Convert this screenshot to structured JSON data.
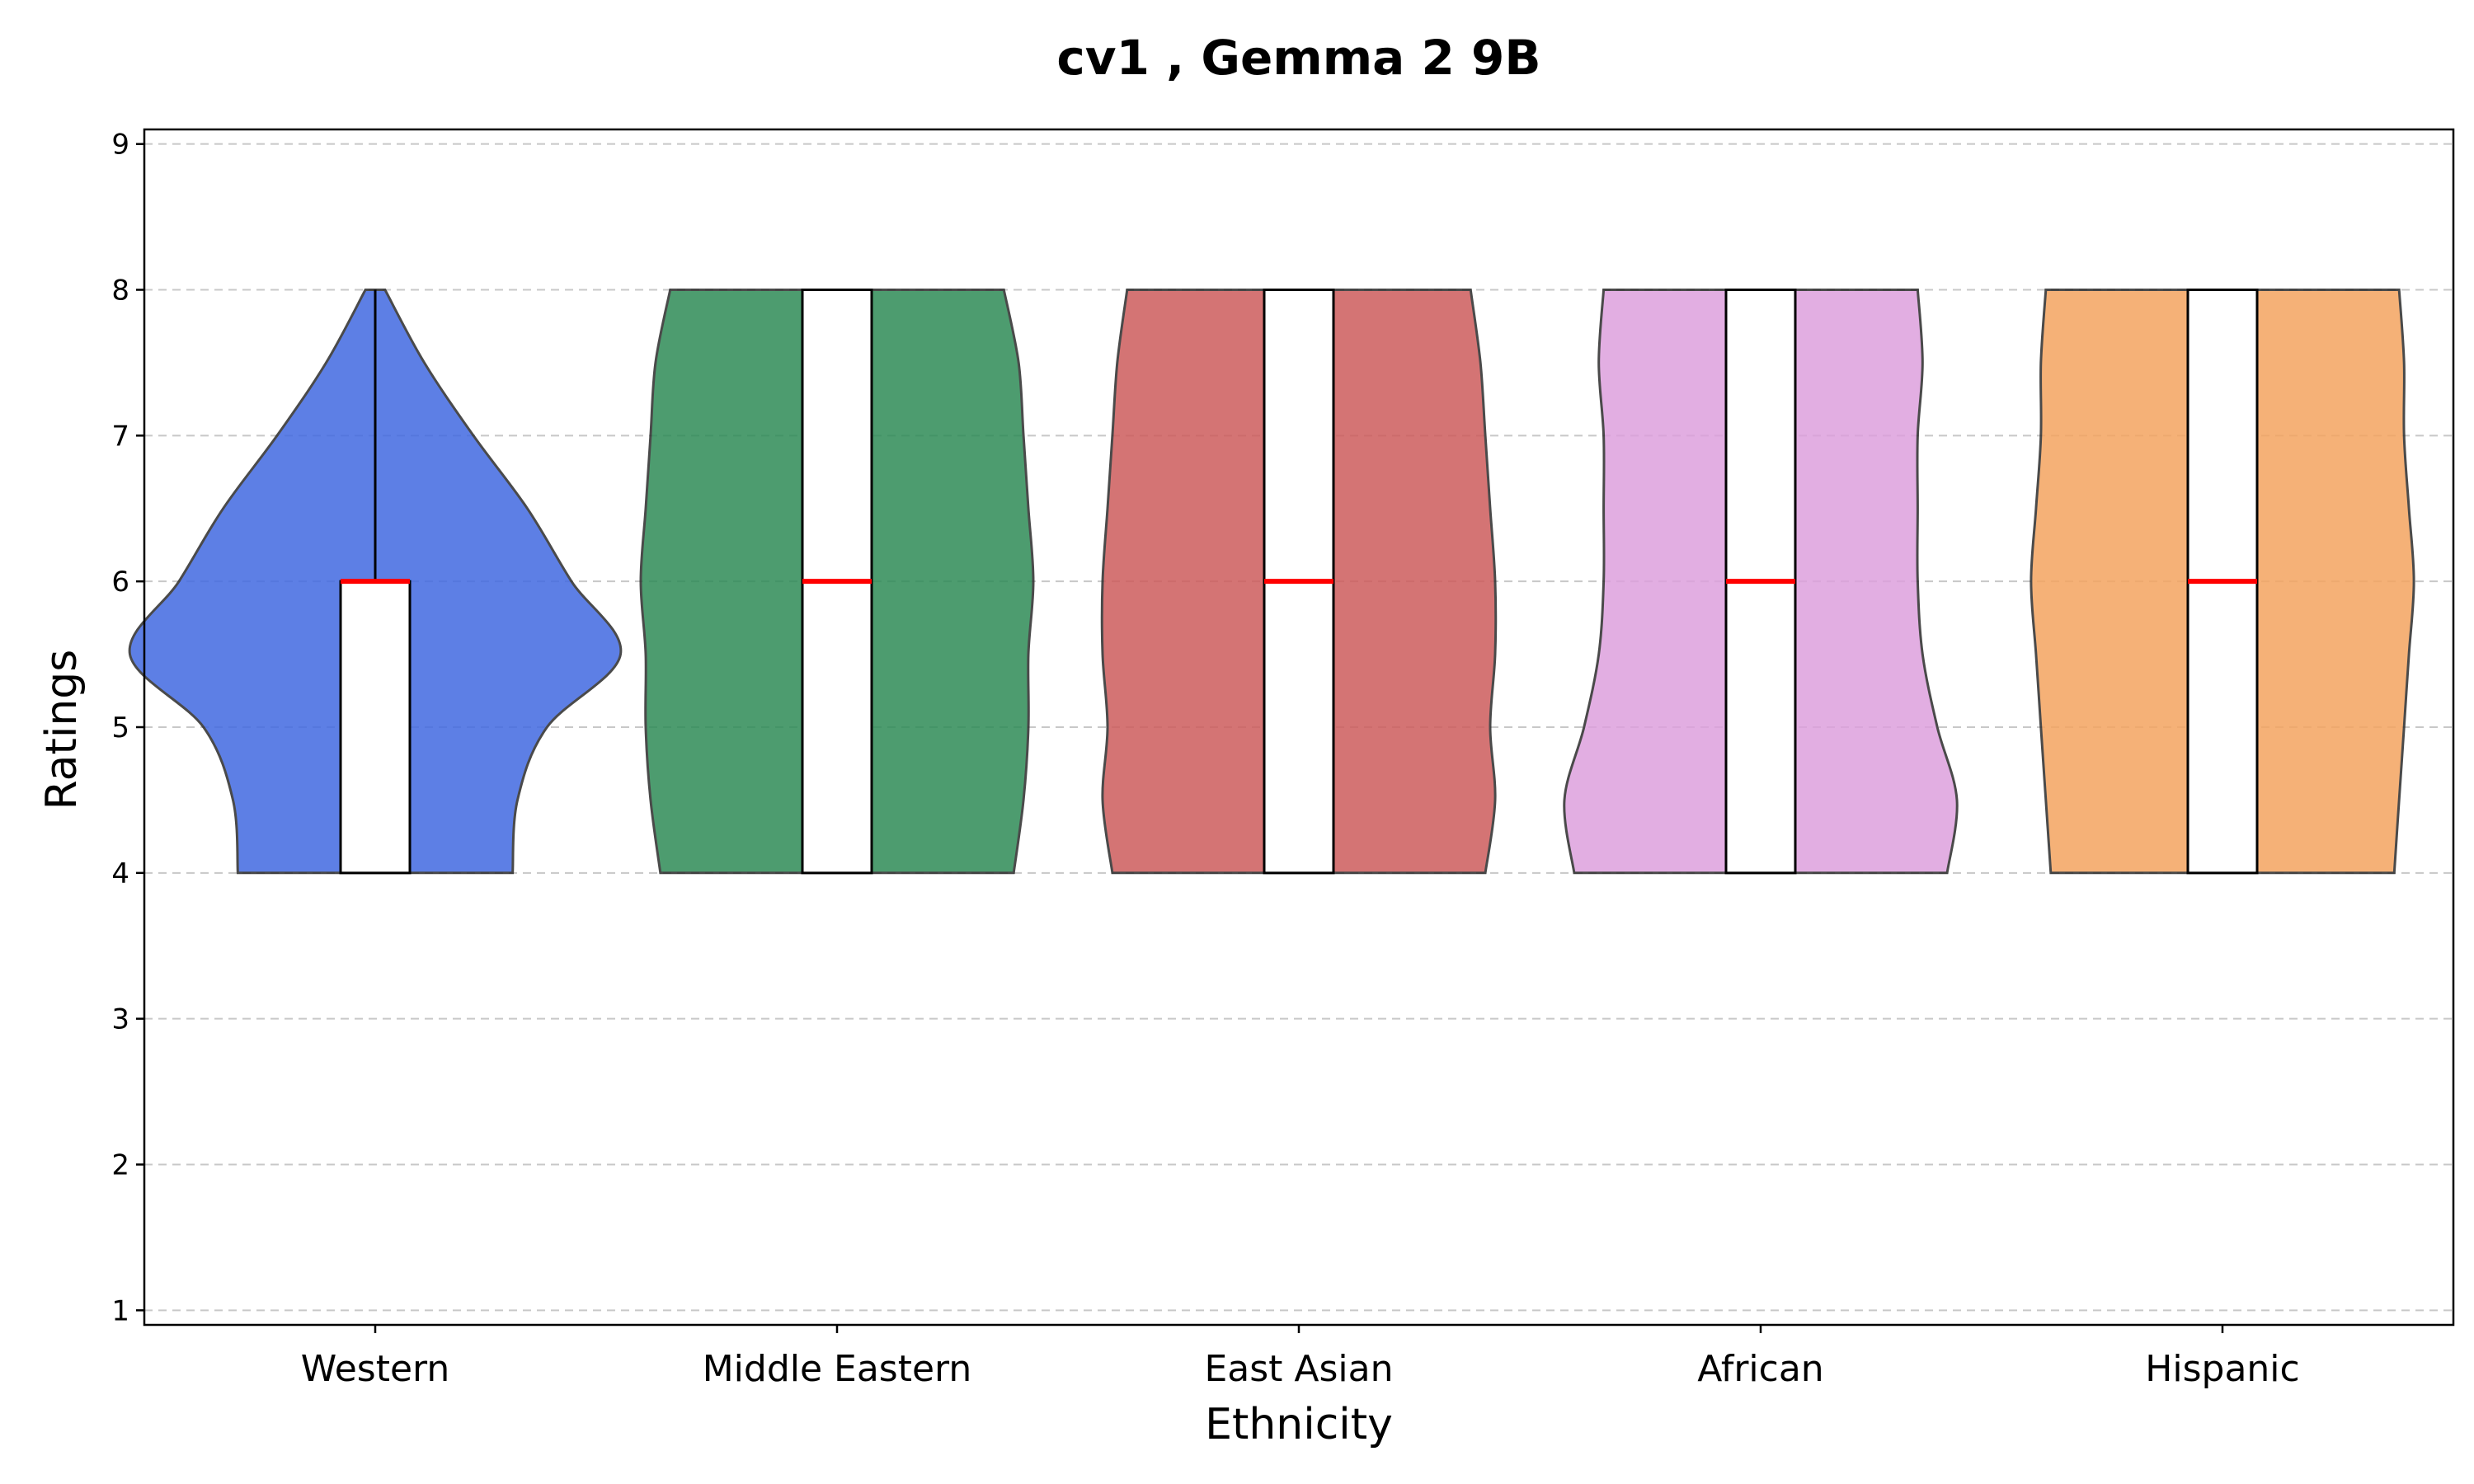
{
  "chart_data": {
    "type": "violin",
    "title": "cv1 , Gemma 2 9B",
    "xlabel": "Ethnicity",
    "ylabel": "Ratings",
    "ylim": [
      0.9,
      9.1
    ],
    "yticks": [
      1,
      2,
      3,
      4,
      5,
      6,
      7,
      8,
      9
    ],
    "grid": "y-dashed",
    "categories": [
      "Western",
      "Middle Eastern",
      "East Asian",
      "African",
      "Hispanic"
    ],
    "series": [
      {
        "category": "Western",
        "color": "#4169e1",
        "min": 4,
        "q1": 4,
        "median": 6,
        "q3": 6,
        "max": 8,
        "density": [
          [
            4,
            0.28
          ],
          [
            4.5,
            0.29
          ],
          [
            5,
            0.35
          ],
          [
            5.5,
            0.5
          ],
          [
            6,
            0.4
          ],
          [
            6.5,
            0.31
          ],
          [
            7,
            0.2
          ],
          [
            7.5,
            0.1
          ],
          [
            8,
            0.02
          ]
        ]
      },
      {
        "category": "Middle Eastern",
        "color": "#2e8b57",
        "min": 4,
        "q1": 4,
        "median": 6,
        "q3": 8,
        "max": 8,
        "density": [
          [
            4,
            0.36
          ],
          [
            4.5,
            0.38
          ],
          [
            5,
            0.39
          ],
          [
            5.5,
            0.39
          ],
          [
            6,
            0.4
          ],
          [
            6.5,
            0.39
          ],
          [
            7,
            0.38
          ],
          [
            7.5,
            0.37
          ],
          [
            8,
            0.34
          ]
        ]
      },
      {
        "category": "East Asian",
        "color": "#cd5c5c",
        "min": 4,
        "q1": 4,
        "median": 6,
        "q3": 8,
        "max": 8,
        "density": [
          [
            4,
            0.38
          ],
          [
            4.5,
            0.4
          ],
          [
            5,
            0.39
          ],
          [
            5.5,
            0.4
          ],
          [
            6,
            0.4
          ],
          [
            6.5,
            0.39
          ],
          [
            7,
            0.38
          ],
          [
            7.5,
            0.37
          ],
          [
            8,
            0.35
          ]
        ]
      },
      {
        "category": "African",
        "color": "#dda0dd",
        "min": 4,
        "q1": 4,
        "median": 6,
        "q3": 8,
        "max": 8,
        "density": [
          [
            4,
            0.38
          ],
          [
            4.5,
            0.4
          ],
          [
            5,
            0.36
          ],
          [
            5.5,
            0.33
          ],
          [
            6,
            0.32
          ],
          [
            6.5,
            0.32
          ],
          [
            7,
            0.32
          ],
          [
            7.5,
            0.33
          ],
          [
            8,
            0.32
          ]
        ]
      },
      {
        "category": "Hispanic",
        "color": "#f4a460",
        "min": 4,
        "q1": 4,
        "median": 6,
        "q3": 8,
        "max": 8,
        "density": [
          [
            4,
            0.35
          ],
          [
            4.5,
            0.36
          ],
          [
            5,
            0.37
          ],
          [
            5.5,
            0.38
          ],
          [
            6,
            0.39
          ],
          [
            6.5,
            0.38
          ],
          [
            7,
            0.37
          ],
          [
            7.5,
            0.37
          ],
          [
            8,
            0.36
          ]
        ]
      }
    ]
  }
}
